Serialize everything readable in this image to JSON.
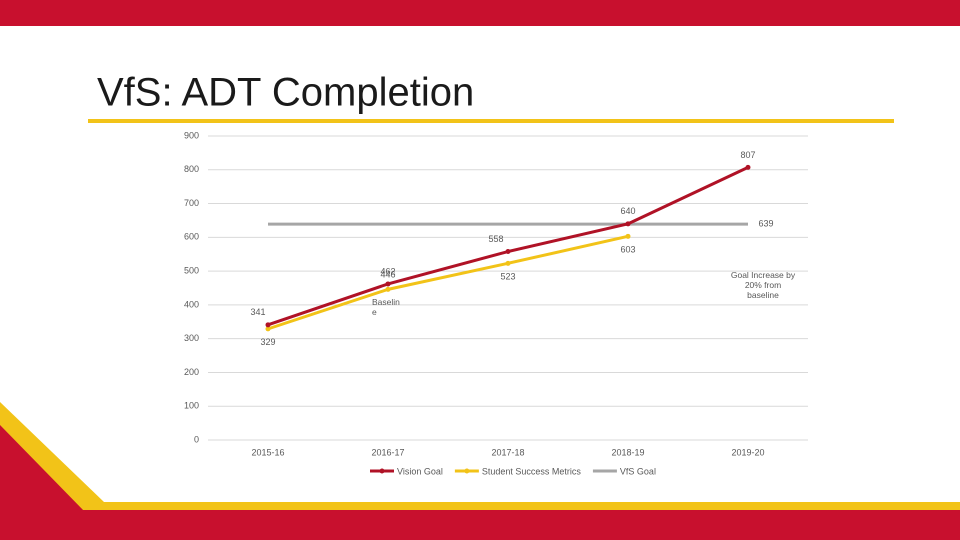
{
  "title": "VfS: ADT Completion",
  "chart_data": {
    "type": "line",
    "categories": [
      "2015-16",
      "2016-17",
      "2017-18",
      "2018-19",
      "2019-20"
    ],
    "series": [
      {
        "name": "Vision Goal",
        "color": "#b01226",
        "values": [
          341,
          462,
          558,
          640,
          807
        ]
      },
      {
        "name": "Student Success Metrics",
        "color": "#f2c318",
        "values": [
          329,
          446,
          523,
          603,
          null
        ]
      },
      {
        "name": "VfS Goal",
        "color": "#a6a6a6",
        "values": [
          639,
          639,
          639,
          639,
          639
        ],
        "label_points": "last"
      }
    ],
    "annotations": [
      "Baseline",
      "Goal Increase by 20% from baseline"
    ],
    "ylim": [
      0,
      900
    ],
    "yticks": [
      0,
      100,
      200,
      300,
      400,
      500,
      600,
      700,
      800,
      900
    ],
    "grid": true,
    "legend": "bottom"
  }
}
